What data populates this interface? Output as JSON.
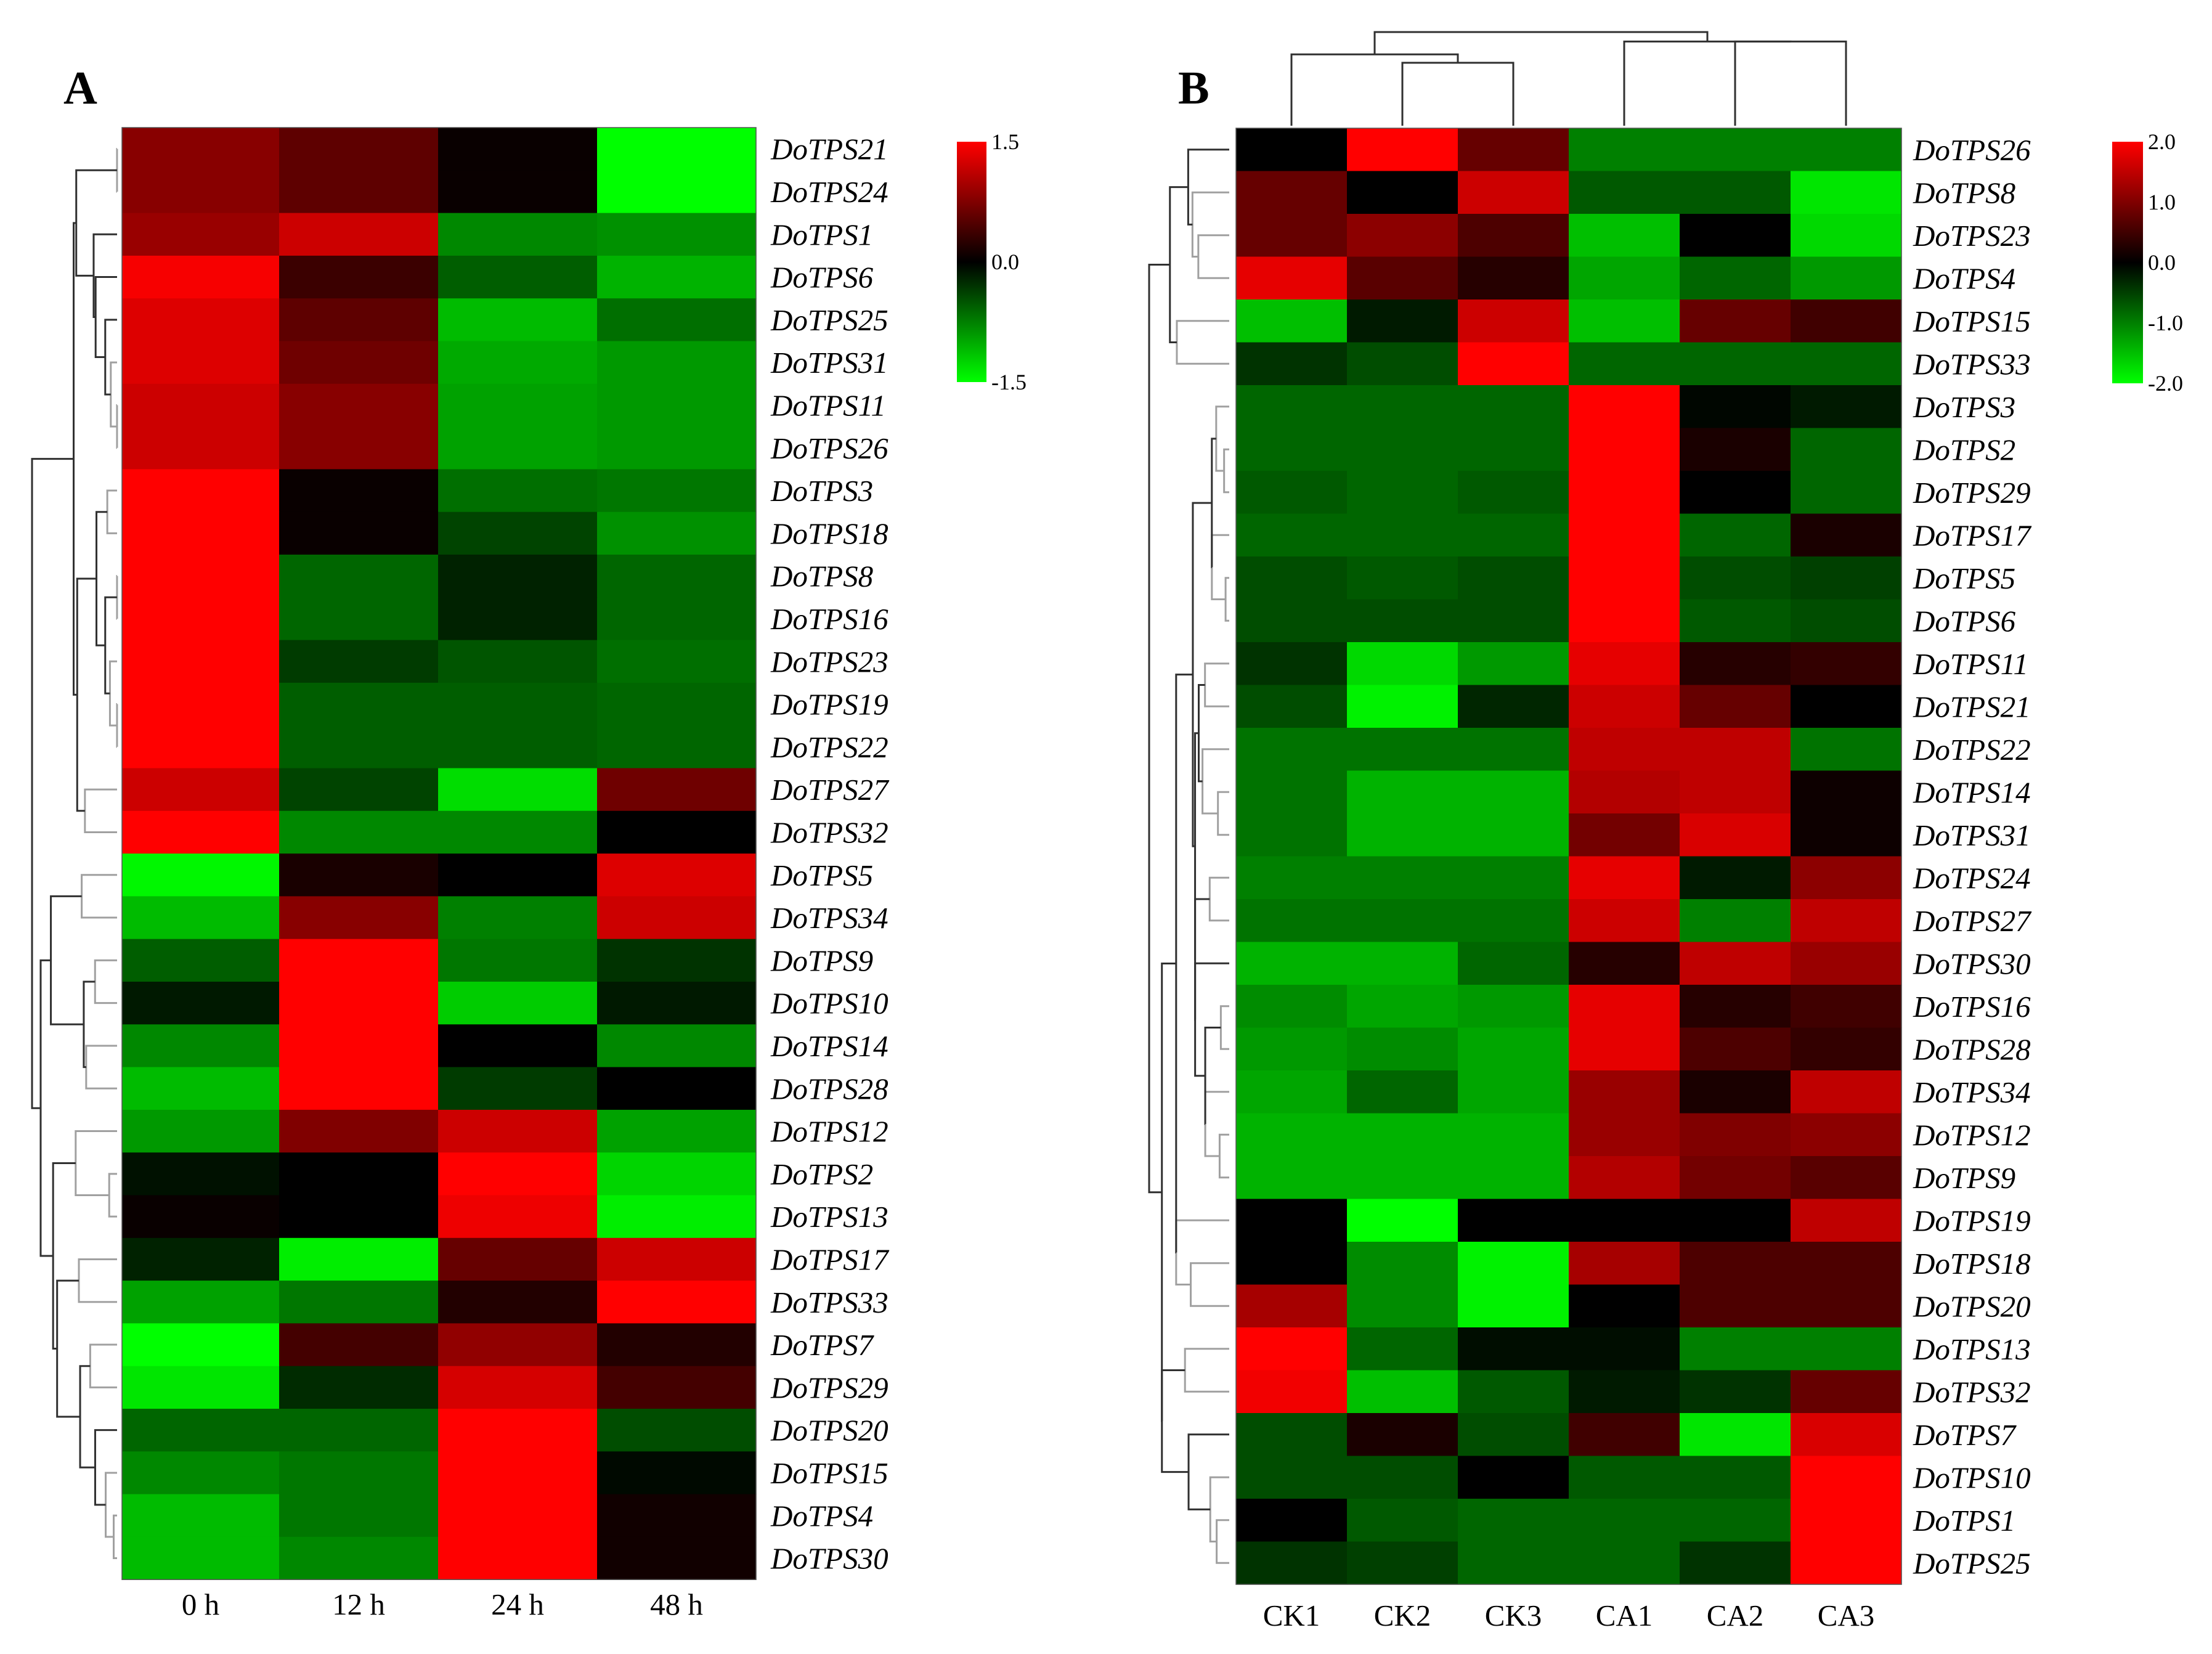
{
  "chart_data": [
    {
      "panel": "A",
      "type": "heatmap",
      "columns": [
        "0 h",
        "12 h",
        "24 h",
        "48 h"
      ],
      "rows": [
        "DoTPS21",
        "DoTPS24",
        "DoTPS1",
        "DoTPS6",
        "DoTPS25",
        "DoTPS31",
        "DoTPS11",
        "DoTPS26",
        "DoTPS3",
        "DoTPS18",
        "DoTPS8",
        "DoTPS16",
        "DoTPS23",
        "DoTPS19",
        "DoTPS22",
        "DoTPS27",
        "DoTPS32",
        "DoTPS5",
        "DoTPS34",
        "DoTPS9",
        "DoTPS10",
        "DoTPS14",
        "DoTPS28",
        "DoTPS12",
        "DoTPS2",
        "DoTPS13",
        "DoTPS17",
        "DoTPS33",
        "DoTPS7",
        "DoTPS29",
        "DoTPS20",
        "DoTPS15",
        "DoTPS4",
        "DoTPS30"
      ],
      "values": [
        [
          0.8,
          0.55,
          0.05,
          -1.5
        ],
        [
          0.8,
          0.55,
          0.05,
          -1.5
        ],
        [
          0.9,
          1.2,
          -0.8,
          -0.85
        ],
        [
          1.45,
          0.35,
          -0.55,
          -1.05
        ],
        [
          1.3,
          0.55,
          -1.1,
          -0.65
        ],
        [
          1.3,
          0.65,
          -1.0,
          -0.9
        ],
        [
          1.2,
          0.8,
          -0.95,
          -0.9
        ],
        [
          1.2,
          0.8,
          -0.95,
          -0.9
        ],
        [
          1.5,
          0.05,
          -0.65,
          -0.7
        ],
        [
          1.5,
          0.05,
          -0.4,
          -0.85
        ],
        [
          1.5,
          -0.6,
          -0.2,
          -0.6
        ],
        [
          1.5,
          -0.6,
          -0.2,
          -0.6
        ],
        [
          1.5,
          -0.35,
          -0.5,
          -0.65
        ],
        [
          1.5,
          -0.55,
          -0.55,
          -0.6
        ],
        [
          1.5,
          -0.55,
          -0.55,
          -0.6
        ],
        [
          1.2,
          -0.4,
          -1.3,
          0.65
        ],
        [
          1.5,
          -0.8,
          -0.8,
          0.0
        ],
        [
          -1.45,
          0.15,
          0.0,
          1.3
        ],
        [
          -1.1,
          0.8,
          -0.75,
          1.2
        ],
        [
          -0.55,
          1.5,
          -0.7,
          -0.3
        ],
        [
          -0.15,
          1.5,
          -1.2,
          -0.15
        ],
        [
          -0.8,
          1.5,
          0.0,
          -0.8
        ],
        [
          -1.1,
          1.5,
          -0.35,
          0.0
        ],
        [
          -0.9,
          0.75,
          1.2,
          -0.95
        ],
        [
          -0.1,
          0.0,
          1.5,
          -1.25
        ],
        [
          0.05,
          0.0,
          1.4,
          -1.4
        ],
        [
          -0.2,
          -1.4,
          0.6,
          1.2
        ],
        [
          -0.95,
          -0.7,
          0.2,
          1.5
        ],
        [
          -1.5,
          0.4,
          0.85,
          0.2
        ],
        [
          -1.35,
          -0.25,
          1.25,
          0.4
        ],
        [
          -0.6,
          -0.6,
          1.5,
          -0.45
        ],
        [
          -0.8,
          -0.7,
          1.5,
          -0.05
        ],
        [
          -1.1,
          -0.7,
          1.5,
          0.1
        ],
        [
          -1.1,
          -0.8,
          1.5,
          0.1
        ]
      ],
      "scale": {
        "max": 1.5,
        "mid": 0.0,
        "min": -1.5,
        "labels": [
          "1.5",
          "0.0",
          "-1.5"
        ]
      },
      "colors": {
        "high": "#ff0000",
        "mid": "#000000",
        "low": "#00ff00"
      },
      "row_dendrogram": "left"
    },
    {
      "panel": "B",
      "type": "heatmap",
      "columns": [
        "CK1",
        "CK2",
        "CK3",
        "CA1",
        "CA2",
        "CA3"
      ],
      "rows": [
        "DoTPS26",
        "DoTPS8",
        "DoTPS23",
        "DoTPS4",
        "DoTPS15",
        "DoTPS33",
        "DoTPS3",
        "DoTPS2",
        "DoTPS29",
        "DoTPS17",
        "DoTPS5",
        "DoTPS6",
        "DoTPS11",
        "DoTPS21",
        "DoTPS22",
        "DoTPS14",
        "DoTPS31",
        "DoTPS24",
        "DoTPS27",
        "DoTPS30",
        "DoTPS16",
        "DoTPS28",
        "DoTPS34",
        "DoTPS12",
        "DoTPS9",
        "DoTPS19",
        "DoTPS18",
        "DoTPS20",
        "DoTPS13",
        "DoTPS32",
        "DoTPS7",
        "DoTPS10",
        "DoTPS1",
        "DoTPS25"
      ],
      "values": [
        [
          0.0,
          2.0,
          0.8,
          -1.0,
          -1.0,
          -1.0
        ],
        [
          0.8,
          0.0,
          1.6,
          -0.7,
          -0.7,
          -1.8
        ],
        [
          0.8,
          1.1,
          0.6,
          -1.5,
          0.0,
          -1.7
        ],
        [
          1.8,
          0.7,
          0.3,
          -1.3,
          -0.8,
          -1.2
        ],
        [
          -1.5,
          -0.2,
          1.6,
          -1.5,
          0.8,
          0.5
        ],
        [
          -0.4,
          -0.6,
          2.0,
          -0.8,
          -0.8,
          -0.8
        ],
        [
          -0.8,
          -0.8,
          -0.8,
          2.0,
          -0.05,
          -0.2
        ],
        [
          -0.8,
          -0.8,
          -0.8,
          2.0,
          0.2,
          -0.8
        ],
        [
          -0.7,
          -0.8,
          -0.7,
          2.0,
          0.0,
          -0.8
        ],
        [
          -0.8,
          -0.8,
          -0.8,
          2.0,
          -0.8,
          0.2
        ],
        [
          -0.6,
          -0.7,
          -0.6,
          2.0,
          -0.6,
          -0.5
        ],
        [
          -0.6,
          -0.6,
          -0.6,
          2.0,
          -0.7,
          -0.6
        ],
        [
          -0.4,
          -1.7,
          -1.2,
          1.8,
          0.3,
          0.4
        ],
        [
          -0.6,
          -1.9,
          -0.3,
          1.6,
          0.8,
          0.0
        ],
        [
          -0.9,
          -0.9,
          -0.9,
          1.5,
          1.5,
          -0.9
        ],
        [
          -0.9,
          -1.4,
          -1.4,
          1.4,
          1.5,
          0.1
        ],
        [
          -0.9,
          -1.4,
          -1.4,
          0.9,
          1.7,
          0.1
        ],
        [
          -1.0,
          -1.0,
          -1.0,
          1.8,
          -0.2,
          1.1
        ],
        [
          -0.9,
          -0.9,
          -0.9,
          1.6,
          -1.0,
          1.5
        ],
        [
          -1.4,
          -1.4,
          -0.8,
          0.3,
          1.5,
          1.2
        ],
        [
          -1.1,
          -1.3,
          -1.2,
          1.8,
          0.3,
          0.5
        ],
        [
          -1.2,
          -1.1,
          -1.3,
          1.8,
          0.6,
          0.4
        ],
        [
          -1.3,
          -0.8,
          -1.3,
          1.2,
          0.2,
          1.5
        ],
        [
          -1.4,
          -1.4,
          -1.4,
          1.2,
          1.0,
          1.1
        ],
        [
          -1.4,
          -1.4,
          -1.4,
          1.4,
          0.9,
          0.7
        ],
        [
          0.0,
          -2.0,
          0.0,
          0.0,
          0.0,
          1.5
        ],
        [
          0.0,
          -1.1,
          -1.9,
          1.3,
          0.6,
          0.6
        ],
        [
          1.3,
          -1.1,
          -1.9,
          0.0,
          0.6,
          0.6
        ],
        [
          2.0,
          -0.8,
          -0.1,
          -0.1,
          -1.0,
          -1.0
        ],
        [
          1.9,
          -1.5,
          -0.7,
          -0.2,
          -0.4,
          0.8
        ],
        [
          -0.6,
          0.2,
          -0.6,
          0.5,
          -1.8,
          1.7
        ],
        [
          -0.6,
          -0.6,
          0.0,
          -0.7,
          -0.7,
          2.0
        ],
        [
          0.0,
          -0.7,
          -0.8,
          -0.8,
          -0.8,
          2.0
        ],
        [
          -0.4,
          -0.5,
          -0.8,
          -0.8,
          -0.4,
          2.0
        ]
      ],
      "scale": {
        "max": 2.0,
        "min": -2.0,
        "labels": [
          "2.0",
          "1.0",
          "0.0",
          "-1.0",
          "-2.0"
        ]
      },
      "colors": {
        "high": "#ff0000",
        "mid": "#000000",
        "low": "#00ff00"
      },
      "row_dendrogram": "left",
      "column_dendrogram": "top"
    }
  ]
}
